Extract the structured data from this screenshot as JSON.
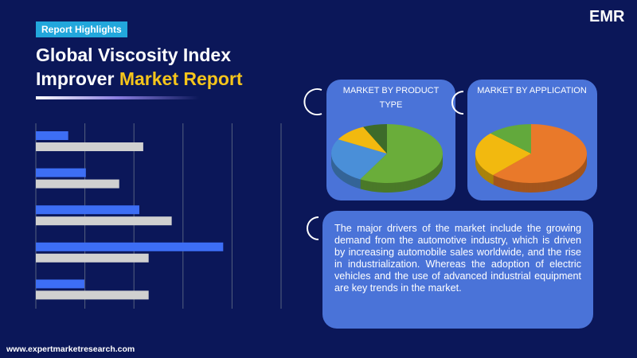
{
  "header": {
    "badge": "Report Highlights",
    "title": [
      "Global Viscosity Index",
      "Improver",
      "Market Report"
    ],
    "logo": "EMR"
  },
  "description": "The major drivers of the market include the growing demand from the automotive industry, which is driven by increasing automobile sales worldwide, and the rise in industrialization. Whereas the adoption of electric vehicles and the use of advanced industrial equipment are key trends in the market.",
  "footer": "www.expertmarketresearch.com",
  "chart_data": [
    {
      "type": "hbar",
      "categories": [
        null,
        null,
        null,
        null,
        null
      ],
      "series": [
        {
          "color": "#3d6ef5",
          "values": [
            0.66,
            1.02,
            2.11,
            3.82,
            0.99
          ]
        },
        {
          "color": "#d0d0d0",
          "values": [
            2.19,
            1.7,
            2.77,
            2.3,
            2.3
          ]
        }
      ],
      "xlim": [
        0,
        5
      ],
      "xticks": [
        0,
        1,
        2,
        3,
        4,
        5
      ],
      "grid": true
    },
    {
      "type": "pie",
      "title": "MARKET BY PRODUCT TYPE",
      "values": [
        58,
        25,
        10,
        7
      ],
      "colors": [
        "#6aad3a",
        "#4a8fd8",
        "#f2b90f",
        "#3d6b2a"
      ]
    },
    {
      "type": "pie",
      "title": "MARKET BY APPLICATION",
      "values": [
        62,
        25,
        13
      ],
      "colors": [
        "#e9792a",
        "#f2b90f",
        "#62a93c"
      ]
    }
  ]
}
